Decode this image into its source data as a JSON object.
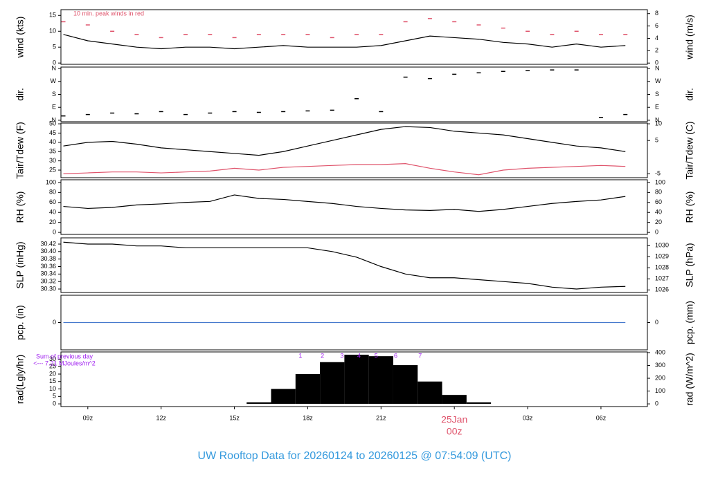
{
  "title": "UW Rooftop Data for 20260124  to  20260125 @ 07:54:09  (UTC)",
  "chart_data": [
    {
      "type": "line",
      "ylabel": "wind (kts)",
      "y2label": "wind (m/s)",
      "annotation": "10 min. peak winds in red",
      "x": [
        8,
        9,
        10,
        11,
        12,
        13,
        14,
        15,
        16,
        17,
        18,
        19,
        20,
        21,
        22,
        23,
        24,
        25,
        26,
        27,
        28,
        29,
        30,
        31
      ],
      "series": [
        {
          "name": "wind",
          "color": "#000000",
          "style": "line",
          "values": [
            9,
            7,
            6,
            5,
            4.5,
            5,
            5,
            4.5,
            5,
            5.5,
            5,
            5,
            5,
            5.5,
            7,
            8.5,
            8,
            7.5,
            6.5,
            6,
            5,
            6,
            5,
            5.5
          ]
        },
        {
          "name": "peak",
          "color": "#df536b",
          "style": "dash",
          "values": [
            13,
            12,
            10,
            9,
            8,
            9,
            9,
            8,
            9,
            9,
            9,
            8,
            9,
            9,
            13,
            14,
            13,
            12,
            11,
            10,
            9,
            10,
            9,
            9
          ]
        }
      ],
      "xlim": [
        7.9,
        31.9
      ],
      "ylim": [
        -0.4,
        16.8
      ],
      "yticks": [
        0,
        5,
        10,
        15
      ],
      "y2lim": [
        -0.2,
        8.64
      ],
      "y2ticks": [
        0,
        2,
        4,
        6,
        8
      ]
    },
    {
      "type": "scatter",
      "ylabel": "dir.",
      "y2label": "dir.",
      "x": [
        8,
        9,
        10,
        11,
        12,
        13,
        14,
        15,
        16,
        17,
        18,
        19,
        20,
        21,
        22,
        23,
        24,
        25,
        26,
        27,
        28,
        29,
        30,
        31
      ],
      "series": [
        {
          "name": "dir",
          "color": "#000000",
          "style": "dash",
          "values": [
            30,
            40,
            50,
            45,
            60,
            40,
            50,
            60,
            55,
            60,
            65,
            70,
            150,
            60,
            300,
            290,
            320,
            330,
            340,
            345,
            350,
            350,
            20,
            40
          ]
        }
      ],
      "xlim": [
        7.9,
        31.9
      ],
      "ylim": [
        -10,
        370
      ],
      "yticks": [
        {
          "value": 0,
          "label": "N"
        },
        {
          "value": 90,
          "label": "E"
        },
        {
          "value": 180,
          "label": "S"
        },
        {
          "value": 270,
          "label": "W"
        },
        {
          "value": 360,
          "label": "N"
        }
      ],
      "y2lim": [
        -10,
        370
      ],
      "y2ticks": [
        {
          "value": 0,
          "label": "N"
        },
        {
          "value": 90,
          "label": "E"
        },
        {
          "value": 180,
          "label": "S"
        },
        {
          "value": 270,
          "label": "W"
        },
        {
          "value": 360,
          "label": "N"
        }
      ]
    },
    {
      "type": "line",
      "ylabel": "Tair/Tdew (F)",
      "y2label": "Tair/Tdew (C)",
      "x": [
        8,
        9,
        10,
        11,
        12,
        13,
        14,
        15,
        16,
        17,
        18,
        19,
        20,
        21,
        22,
        23,
        24,
        25,
        26,
        27,
        28,
        29,
        30,
        31
      ],
      "series": [
        {
          "name": "Tair",
          "color": "#000000",
          "style": "line",
          "values": [
            38,
            40,
            40.5,
            39,
            37,
            36,
            35,
            34,
            33,
            35,
            38,
            41,
            44,
            47,
            48.5,
            48,
            46,
            45,
            44,
            42,
            40,
            38,
            37,
            35
          ]
        },
        {
          "name": "Tdew",
          "color": "#df536b",
          "style": "line",
          "values": [
            23,
            23.5,
            24,
            24,
            23.5,
            24,
            24.5,
            26,
            25,
            26.5,
            27,
            27.5,
            28,
            28,
            28.5,
            26,
            24,
            22.5,
            25,
            26,
            26.5,
            27,
            27.5,
            27
          ]
        }
      ],
      "xlim": [
        7.9,
        31.9
      ],
      "ylim": [
        20.9,
        50.4
      ],
      "yticks": [
        25,
        30,
        35,
        40,
        45,
        50
      ],
      "y2lim": [
        -6.17,
        10.22
      ],
      "y2ticks": [
        -5,
        5,
        10
      ]
    },
    {
      "type": "line",
      "ylabel": "RH (%)",
      "y2label": "RH (%)",
      "x": [
        8,
        9,
        10,
        11,
        12,
        13,
        14,
        15,
        16,
        17,
        18,
        19,
        20,
        21,
        22,
        23,
        24,
        25,
        26,
        27,
        28,
        29,
        30,
        31
      ],
      "series": [
        {
          "name": "RH",
          "color": "#000000",
          "style": "line",
          "values": [
            52,
            48,
            50,
            55,
            57,
            60,
            62,
            75,
            68,
            66,
            62,
            58,
            52,
            48,
            45,
            44,
            46,
            42,
            46,
            52,
            58,
            62,
            65,
            72
          ]
        }
      ],
      "xlim": [
        7.9,
        31.9
      ],
      "ylim": [
        -4,
        105.4
      ],
      "yticks": [
        0,
        20,
        40,
        60,
        80,
        100
      ],
      "y2lim": [
        -4,
        105.4
      ],
      "y2ticks": [
        0,
        20,
        40,
        60,
        80,
        100
      ]
    },
    {
      "type": "line",
      "ylabel": "SLP (inHg)",
      "y2label": "SLP (hPa)",
      "x": [
        8,
        9,
        10,
        11,
        12,
        13,
        14,
        15,
        16,
        17,
        18,
        19,
        20,
        21,
        22,
        23,
        24,
        25,
        26,
        27,
        28,
        29,
        30,
        31
      ],
      "series": [
        {
          "name": "SLP",
          "color": "#000000",
          "style": "line",
          "values": [
            30.425,
            30.42,
            30.42,
            30.415,
            30.415,
            30.41,
            30.41,
            30.41,
            30.41,
            30.41,
            30.41,
            30.4,
            30.385,
            30.36,
            30.34,
            30.33,
            30.33,
            30.325,
            30.32,
            30.315,
            30.305,
            30.3,
            30.305,
            30.307
          ]
        }
      ],
      "xlim": [
        7.9,
        31.9
      ],
      "ylim": [
        30.2908,
        30.4366
      ],
      "yticks": [
        {
          "value": 30.3,
          "label": "30.30"
        },
        30.32,
        30.34,
        30.36,
        30.38,
        {
          "value": 30.4,
          "label": "30.40"
        },
        30.42
      ],
      "y2lim": [
        1025.77,
        1030.7
      ],
      "y2ticks": [
        1026,
        1027,
        1028,
        1029,
        1030
      ]
    },
    {
      "type": "line",
      "ylabel": "pcp. (in)",
      "y2label": "pcp. (mm)",
      "x": [
        8,
        9,
        10,
        11,
        12,
        13,
        14,
        15,
        16,
        17,
        18,
        19,
        20,
        21,
        22,
        23,
        24,
        25,
        26,
        27,
        28,
        29,
        30,
        31
      ],
      "series": [
        {
          "name": "pcp",
          "color": "#4477cc",
          "style": "line",
          "values": [
            0,
            0,
            0,
            0,
            0,
            0,
            0,
            0,
            0,
            0,
            0,
            0,
            0,
            0,
            0,
            0,
            0,
            0,
            0,
            0,
            0,
            0,
            0,
            0
          ]
        }
      ],
      "xlim": [
        7.9,
        31.9
      ],
      "ylim": [
        -1,
        1
      ],
      "yticks": [
        0
      ],
      "y2lim": [
        -25.4,
        25.4
      ],
      "y2ticks": [
        0
      ]
    },
    {
      "type": "bar",
      "ylabel": "rad(Lgly/hr)",
      "y2label": "rad (W/m^2)",
      "annotations": [
        "Sum of previous day",
        "<--- 7.21 MJoules/m^2"
      ],
      "hour_marks": {
        "labels": [
          "1",
          "2",
          "3",
          "4",
          "5",
          "6",
          "7"
        ],
        "x": [
          17.7,
          18.6,
          19.4,
          20.1,
          20.8,
          21.6,
          22.6
        ]
      },
      "x": [
        8,
        9,
        10,
        11,
        12,
        13,
        14,
        15,
        16,
        17,
        18,
        19,
        20,
        21,
        22,
        23,
        24,
        25,
        26,
        27,
        28,
        29,
        30,
        31
      ],
      "series": [
        {
          "name": "rad",
          "color": "#000000",
          "style": "bar",
          "values": [
            0,
            0,
            0,
            0,
            0,
            0,
            0,
            0,
            1,
            10,
            20,
            28,
            33,
            32,
            26,
            15,
            6,
            1,
            0,
            0,
            0,
            0,
            0,
            0
          ]
        }
      ],
      "xlim": [
        7.9,
        31.9
      ],
      "ylim": [
        -1.81,
        34.85
      ],
      "yticks": [
        0,
        5,
        10,
        15,
        20,
        25,
        30
      ],
      "y2lim": [
        -21,
        405.3
      ],
      "y2ticks": [
        0,
        100,
        200,
        300,
        400
      ],
      "xticks": [
        {
          "value": 9,
          "label": "09z"
        },
        {
          "value": 12,
          "label": "12z"
        },
        {
          "value": 15,
          "label": "15z"
        },
        {
          "value": 18,
          "label": "18z"
        },
        {
          "value": 21,
          "label": "21z"
        },
        {
          "value": 24,
          "label": "00z"
        },
        {
          "value": 27,
          "label": "03z"
        },
        {
          "value": 30,
          "label": "06z"
        }
      ],
      "day_boundary": {
        "x": 24,
        "label": "25Jan"
      }
    }
  ]
}
